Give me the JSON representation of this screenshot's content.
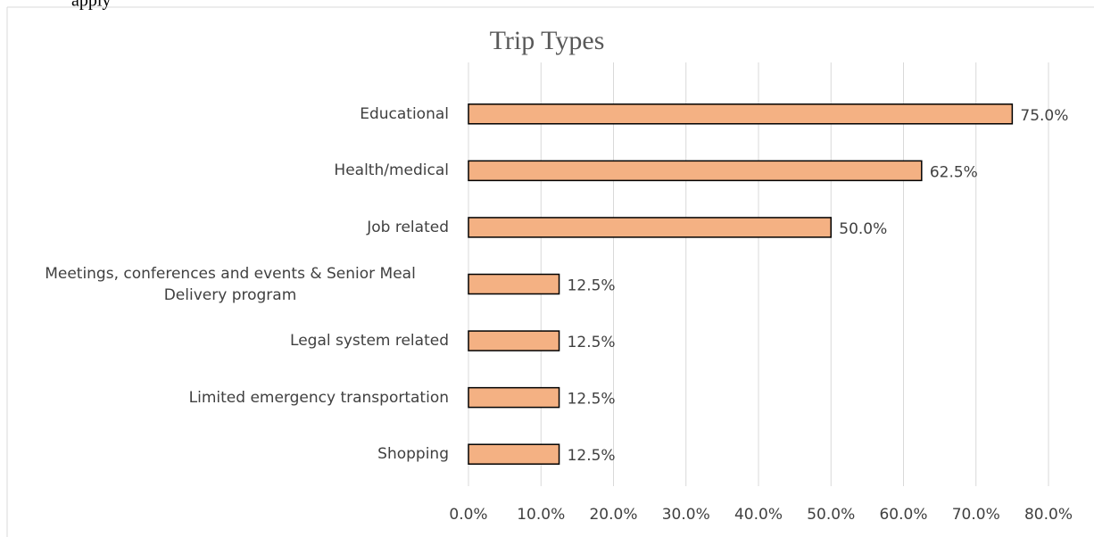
{
  "caption": "apply",
  "chart_data": {
    "type": "bar",
    "orientation": "horizontal",
    "title": "Trip Types",
    "categories": [
      "Educational",
      "Health/medical",
      "Job related",
      "Meetings, conferences and events & Senior Meal Delivery program",
      "Legal system related",
      "Limited emergency transportation",
      "Shopping"
    ],
    "values": [
      75.0,
      62.5,
      50.0,
      12.5,
      12.5,
      12.5,
      12.5
    ],
    "value_labels": [
      "75.0%",
      "62.5%",
      "50.0%",
      "12.5%",
      "12.5%",
      "12.5%",
      "12.5%"
    ],
    "color": "#f4b183",
    "xlim": [
      0,
      80
    ],
    "xticks": [
      {
        "value": 0,
        "label": "0.0%"
      },
      {
        "value": 10,
        "label": "10.0%"
      },
      {
        "value": 20,
        "label": "20.0%"
      },
      {
        "value": 30,
        "label": "30.0%"
      },
      {
        "value": 40,
        "label": "40.0%"
      },
      {
        "value": 50,
        "label": "50.0%"
      },
      {
        "value": 60,
        "label": "60.0%"
      },
      {
        "value": 70,
        "label": "70.0%"
      },
      {
        "value": 80,
        "label": "80.0%"
      }
    ],
    "grid": true
  }
}
